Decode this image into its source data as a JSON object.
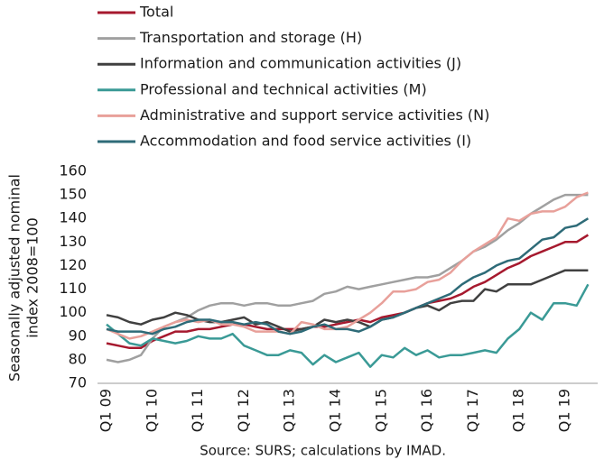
{
  "chart_data": {
    "type": "line",
    "ylabel": [
      "Seasonally adjusted nominal",
      "index 2008=100"
    ],
    "source": "Source:  SURS; calculations by IMAD.",
    "categories": [
      "Q1 09",
      null,
      null,
      null,
      "Q1 10",
      null,
      null,
      null,
      "Q1 11",
      null,
      null,
      null,
      "Q1 12",
      null,
      null,
      null,
      "Q1 13",
      null,
      null,
      null,
      "Q1 14",
      null,
      null,
      null,
      "Q1 15",
      null,
      null,
      null,
      "Q1 16",
      null,
      null,
      null,
      "Q1 17",
      null,
      null,
      null,
      "Q1 18",
      null,
      null,
      null,
      "Q1 19",
      null,
      null
    ],
    "ylim": [
      70,
      160
    ],
    "yticks": [
      70,
      80,
      90,
      100,
      110,
      120,
      130,
      140,
      150,
      160
    ],
    "legend": "top-left",
    "grid": false,
    "series": [
      {
        "name": "Total",
        "color": "#a6192e",
        "values": [
          87,
          86,
          85,
          85,
          88,
          90,
          92,
          92,
          93,
          93,
          94,
          95,
          95,
          94,
          93,
          93,
          93,
          93,
          94,
          94,
          95,
          96,
          97,
          96,
          98,
          99,
          100,
          102,
          104,
          105,
          106,
          108,
          111,
          113,
          116,
          119,
          121,
          124,
          126,
          128,
          130,
          130,
          133
        ]
      },
      {
        "name": "Transportation and storage (H)",
        "color": "#a0a0a0",
        "values": [
          80,
          79,
          80,
          82,
          89,
          94,
          96,
          98,
          101,
          103,
          104,
          104,
          103,
          104,
          104,
          103,
          103,
          104,
          105,
          108,
          109,
          111,
          110,
          111,
          112,
          113,
          114,
          115,
          115,
          116,
          119,
          122,
          126,
          128,
          131,
          135,
          138,
          142,
          145,
          148,
          150,
          150,
          150
        ]
      },
      {
        "name": "Information and communication activities (J)",
        "color": "#404040",
        "values": [
          99,
          98,
          96,
          95,
          97,
          98,
          100,
          99,
          97,
          96,
          96,
          97,
          98,
          95,
          96,
          94,
          92,
          93,
          94,
          97,
          96,
          97,
          96,
          94,
          97,
          98,
          100,
          102,
          103,
          101,
          104,
          105,
          105,
          110,
          109,
          112,
          112,
          112,
          114,
          116,
          118,
          118,
          118
        ]
      },
      {
        "name": "Professional and technical activities (M)",
        "color": "#3a9a96",
        "values": [
          95,
          91,
          87,
          86,
          89,
          88,
          87,
          88,
          90,
          89,
          89,
          91,
          86,
          84,
          82,
          82,
          84,
          83,
          78,
          82,
          79,
          81,
          83,
          77,
          82,
          81,
          85,
          82,
          84,
          81,
          82,
          82,
          83,
          84,
          83,
          89,
          93,
          100,
          97,
          104,
          104,
          103,
          112
        ]
      },
      {
        "name": "Administrative and support service activities (N)",
        "color": "#e8a09a",
        "values": [
          93,
          91,
          89,
          90,
          92,
          94,
          96,
          97,
          96,
          97,
          95,
          95,
          94,
          92,
          92,
          92,
          91,
          96,
          95,
          93,
          93,
          94,
          97,
          100,
          104,
          109,
          109,
          110,
          113,
          114,
          117,
          122,
          126,
          129,
          132,
          140,
          139,
          142,
          143,
          143,
          145,
          149,
          151
        ]
      },
      {
        "name": "Accommodation and food service activities (I)",
        "color": "#2e6b78",
        "values": [
          93,
          92,
          92,
          92,
          91,
          93,
          94,
          96,
          97,
          97,
          96,
          96,
          95,
          96,
          95,
          92,
          91,
          92,
          94,
          95,
          93,
          93,
          92,
          94,
          97,
          98,
          100,
          102,
          104,
          106,
          108,
          112,
          115,
          117,
          120,
          122,
          123,
          127,
          131,
          132,
          136,
          137,
          140
        ]
      }
    ]
  }
}
